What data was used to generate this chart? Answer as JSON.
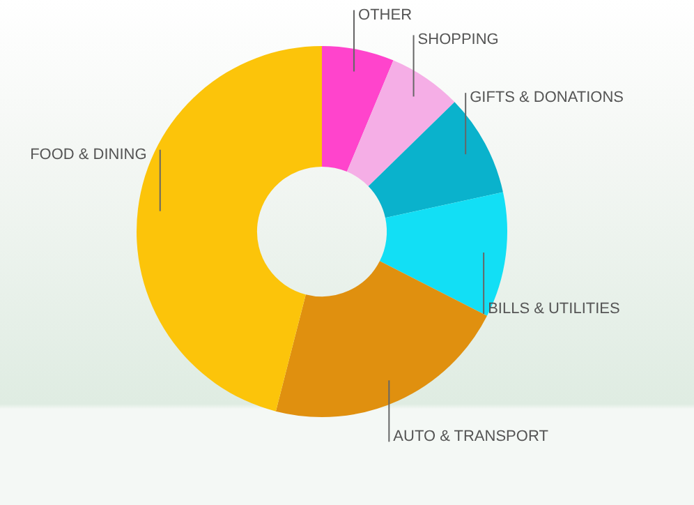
{
  "chart_data": {
    "type": "donut",
    "categories": [
      "OTHER",
      "SHOPPING",
      "GIFTS & DONATIONS",
      "BILLS & UTILITIES",
      "AUTO & TRANSPORT",
      "FOOD & DINING"
    ],
    "values": [
      6.3,
      6.4,
      8.9,
      10.9,
      21.5,
      46.0
    ],
    "colors": [
      "#ff44cc",
      "#f5aee6",
      "#0ab2cc",
      "#12dff5",
      "#e0900f",
      "#fcc40a"
    ],
    "legend": false
  }
}
